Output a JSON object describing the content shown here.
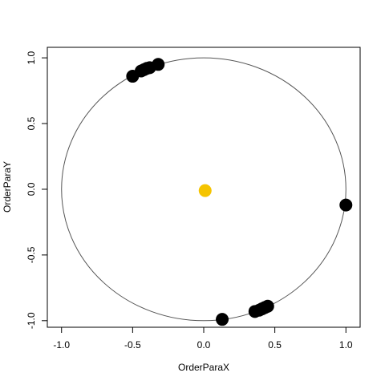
{
  "chart_data": {
    "type": "scatter",
    "title": "",
    "xlabel": "OrderParaX",
    "ylabel": "OrderParaY",
    "xlim": [
      -1.1,
      1.1
    ],
    "ylim": [
      -1.05,
      1.08
    ],
    "x_ticks": [
      -1.0,
      -0.5,
      0.0,
      0.5,
      1.0
    ],
    "x_tick_labels": [
      "-1.0",
      "-0.5",
      "0.0",
      "0.5",
      "1.0"
    ],
    "y_ticks": [
      -1.0,
      -0.5,
      0.0,
      0.5,
      1.0
    ],
    "y_tick_labels": [
      "-1.0",
      "-0.5",
      "0.0",
      "0.5",
      "1.0"
    ],
    "grid": false,
    "unit_circle": {
      "cx": 0,
      "cy": 0,
      "r": 1,
      "color": "#555555"
    },
    "series": [
      {
        "color": "#000000",
        "points": [
          {
            "x": -0.5,
            "y": 0.86
          },
          {
            "x": -0.44,
            "y": 0.9
          },
          {
            "x": -0.42,
            "y": 0.91
          },
          {
            "x": -0.4,
            "y": 0.92
          },
          {
            "x": -0.38,
            "y": 0.925
          },
          {
            "x": -0.32,
            "y": 0.95
          },
          {
            "x": 1.0,
            "y": -0.12
          },
          {
            "x": 0.13,
            "y": -0.99
          },
          {
            "x": 0.36,
            "y": -0.93
          },
          {
            "x": 0.39,
            "y": -0.92
          },
          {
            "x": 0.41,
            "y": -0.91
          },
          {
            "x": 0.43,
            "y": -0.9
          },
          {
            "x": 0.45,
            "y": -0.89
          }
        ]
      },
      {
        "color": "#f5c400",
        "points": [
          {
            "x": 0.01,
            "y": -0.01
          }
        ]
      }
    ]
  }
}
